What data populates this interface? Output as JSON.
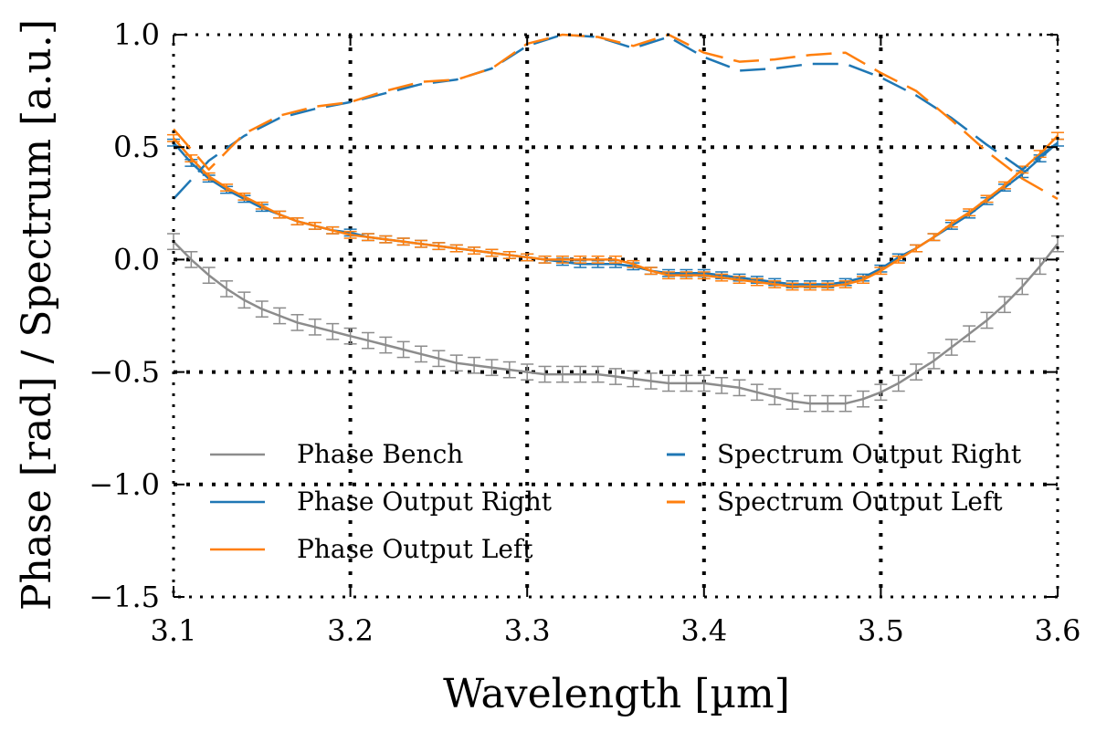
{
  "chart_data": {
    "type": "line",
    "xlabel": "Wavelength [µm]",
    "ylabel": "Phase [rad] / Spectrum [a.u.]",
    "xlim": [
      3.1,
      3.6
    ],
    "ylim": [
      -1.5,
      1.0
    ],
    "xticks": [
      "3.1",
      "3.2",
      "3.3",
      "3.4",
      "3.5",
      "3.6"
    ],
    "yticks": [
      "1.0",
      "0.5",
      "0.0",
      "−0.5",
      "−1.0",
      "−1.5"
    ],
    "xtick_values": [
      3.1,
      3.2,
      3.3,
      3.4,
      3.5,
      3.6
    ],
    "ytick_values": [
      1.0,
      0.5,
      0.0,
      -0.5,
      -1.0,
      -1.5
    ],
    "grid": true,
    "legend_position": "lower-center",
    "colors": {
      "bench": "#8c8c8c",
      "right": "#1f77b4",
      "left": "#ff7f0e"
    },
    "series": [
      {
        "name": "Phase Bench",
        "style": "solid",
        "color": "#8c8c8c",
        "errorbars": true,
        "x": [
          3.1,
          3.11,
          3.12,
          3.13,
          3.14,
          3.15,
          3.16,
          3.17,
          3.18,
          3.19,
          3.2,
          3.21,
          3.22,
          3.23,
          3.24,
          3.25,
          3.26,
          3.27,
          3.28,
          3.29,
          3.3,
          3.31,
          3.32,
          3.33,
          3.34,
          3.35,
          3.36,
          3.37,
          3.38,
          3.39,
          3.4,
          3.41,
          3.42,
          3.43,
          3.44,
          3.45,
          3.46,
          3.47,
          3.48,
          3.49,
          3.5,
          3.51,
          3.52,
          3.53,
          3.54,
          3.55,
          3.56,
          3.57,
          3.58,
          3.59,
          3.6
        ],
        "y": [
          0.08,
          0.0,
          -0.07,
          -0.13,
          -0.18,
          -0.22,
          -0.25,
          -0.28,
          -0.3,
          -0.32,
          -0.34,
          -0.36,
          -0.38,
          -0.4,
          -0.42,
          -0.44,
          -0.46,
          -0.47,
          -0.48,
          -0.49,
          -0.5,
          -0.51,
          -0.51,
          -0.51,
          -0.51,
          -0.52,
          -0.53,
          -0.54,
          -0.55,
          -0.55,
          -0.55,
          -0.56,
          -0.57,
          -0.59,
          -0.61,
          -0.63,
          -0.64,
          -0.64,
          -0.64,
          -0.62,
          -0.59,
          -0.55,
          -0.5,
          -0.45,
          -0.39,
          -0.33,
          -0.27,
          -0.2,
          -0.12,
          -0.03,
          0.07
        ],
        "error": 0.035
      },
      {
        "name": "Phase Output Right",
        "style": "solid",
        "color": "#1f77b4",
        "errorbars": true,
        "x": [
          3.1,
          3.11,
          3.12,
          3.13,
          3.14,
          3.15,
          3.16,
          3.17,
          3.18,
          3.19,
          3.2,
          3.21,
          3.22,
          3.23,
          3.24,
          3.25,
          3.26,
          3.27,
          3.28,
          3.29,
          3.3,
          3.31,
          3.32,
          3.33,
          3.34,
          3.35,
          3.36,
          3.37,
          3.38,
          3.39,
          3.4,
          3.41,
          3.42,
          3.43,
          3.44,
          3.45,
          3.46,
          3.47,
          3.48,
          3.49,
          3.5,
          3.51,
          3.52,
          3.53,
          3.54,
          3.55,
          3.56,
          3.57,
          3.58,
          3.59,
          3.6
        ],
        "y": [
          0.52,
          0.43,
          0.36,
          0.31,
          0.27,
          0.23,
          0.2,
          0.17,
          0.15,
          0.13,
          0.12,
          0.1,
          0.09,
          0.08,
          0.07,
          0.06,
          0.05,
          0.04,
          0.03,
          0.02,
          0.01,
          0.0,
          -0.01,
          -0.02,
          -0.02,
          -0.02,
          -0.03,
          -0.05,
          -0.06,
          -0.06,
          -0.06,
          -0.07,
          -0.08,
          -0.09,
          -0.1,
          -0.11,
          -0.11,
          -0.11,
          -0.1,
          -0.08,
          -0.04,
          0.01,
          0.05,
          0.1,
          0.15,
          0.2,
          0.26,
          0.32,
          0.38,
          0.45,
          0.52
        ],
        "error": 0.015
      },
      {
        "name": "Phase Output Left",
        "style": "solid",
        "color": "#ff7f0e",
        "errorbars": true,
        "x": [
          3.1,
          3.11,
          3.12,
          3.13,
          3.14,
          3.15,
          3.16,
          3.17,
          3.18,
          3.19,
          3.2,
          3.21,
          3.22,
          3.23,
          3.24,
          3.25,
          3.26,
          3.27,
          3.28,
          3.29,
          3.3,
          3.31,
          3.32,
          3.33,
          3.34,
          3.35,
          3.36,
          3.37,
          3.38,
          3.39,
          3.4,
          3.41,
          3.42,
          3.43,
          3.44,
          3.45,
          3.46,
          3.47,
          3.48,
          3.49,
          3.5,
          3.51,
          3.52,
          3.53,
          3.54,
          3.55,
          3.56,
          3.57,
          3.58,
          3.59,
          3.6
        ],
        "y": [
          0.54,
          0.45,
          0.37,
          0.32,
          0.28,
          0.24,
          0.2,
          0.17,
          0.15,
          0.13,
          0.11,
          0.1,
          0.09,
          0.08,
          0.07,
          0.06,
          0.05,
          0.04,
          0.03,
          0.02,
          0.01,
          0.0,
          0.0,
          0.0,
          0.0,
          0.0,
          -0.02,
          -0.05,
          -0.07,
          -0.07,
          -0.07,
          -0.08,
          -0.09,
          -0.1,
          -0.11,
          -0.12,
          -0.12,
          -0.12,
          -0.11,
          -0.09,
          -0.05,
          0.0,
          0.05,
          0.1,
          0.16,
          0.21,
          0.27,
          0.33,
          0.4,
          0.47,
          0.55
        ],
        "error": 0.015
      },
      {
        "name": "Spectrum Output Right",
        "style": "dashed",
        "color": "#1f77b4",
        "errorbars": false,
        "x": [
          3.1,
          3.12,
          3.14,
          3.16,
          3.18,
          3.2,
          3.22,
          3.24,
          3.26,
          3.28,
          3.3,
          3.32,
          3.34,
          3.36,
          3.38,
          3.4,
          3.42,
          3.44,
          3.46,
          3.48,
          3.5,
          3.52,
          3.54,
          3.56,
          3.58,
          3.6
        ],
        "y": [
          0.27,
          0.44,
          0.55,
          0.63,
          0.67,
          0.7,
          0.74,
          0.78,
          0.8,
          0.85,
          0.95,
          1.0,
          0.99,
          0.94,
          0.99,
          0.9,
          0.84,
          0.85,
          0.87,
          0.87,
          0.81,
          0.73,
          0.63,
          0.51,
          0.4,
          0.52
        ]
      },
      {
        "name": "Spectrum Output Left",
        "style": "dashed",
        "color": "#ff7f0e",
        "errorbars": false,
        "x": [
          3.1,
          3.12,
          3.14,
          3.16,
          3.18,
          3.2,
          3.22,
          3.24,
          3.26,
          3.28,
          3.3,
          3.32,
          3.34,
          3.36,
          3.38,
          3.4,
          3.42,
          3.44,
          3.46,
          3.48,
          3.5,
          3.52,
          3.54,
          3.56,
          3.58,
          3.6
        ],
        "y": [
          0.58,
          0.4,
          0.56,
          0.64,
          0.68,
          0.7,
          0.75,
          0.79,
          0.8,
          0.85,
          0.96,
          1.0,
          0.99,
          0.95,
          1.0,
          0.92,
          0.88,
          0.89,
          0.91,
          0.92,
          0.83,
          0.75,
          0.62,
          0.48,
          0.36,
          0.27
        ]
      }
    ]
  }
}
